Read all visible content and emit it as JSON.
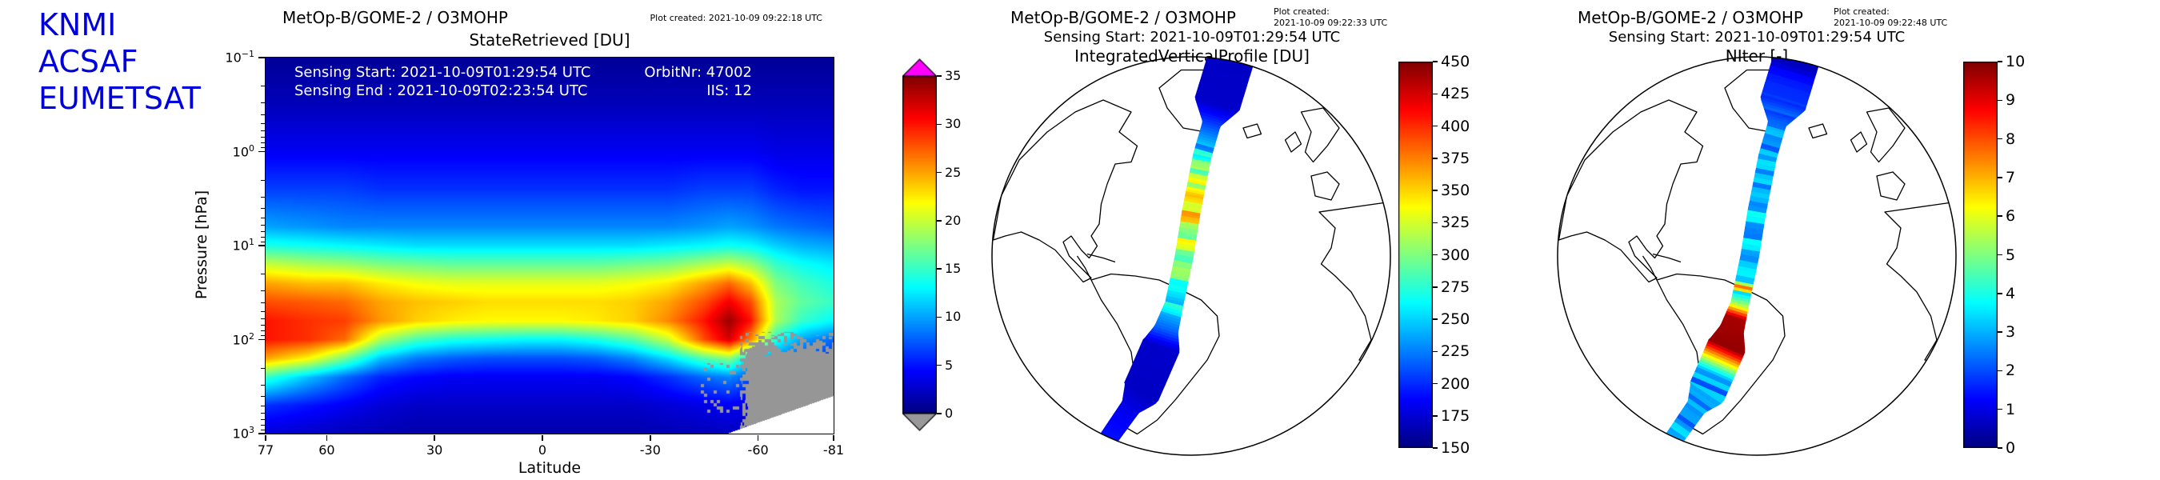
{
  "logo": {
    "lines": [
      "KNMI",
      "ACSAF",
      "EUMETSAT"
    ],
    "color": "#0000dd"
  },
  "heatmap_panel": {
    "title": "MetOp-B/GOME-2 / O3MOHP",
    "plot_created": "Plot created: 2021-10-09 09:22:18 UTC",
    "subtitle": "StateRetrieved [DU]",
    "sensing_start": "Sensing Start: 2021-10-09T01:29:54 UTC",
    "sensing_end": "Sensing End : 2021-10-09T02:23:54 UTC",
    "orbit": "OrbitNr: 47002",
    "iis": "IIS: 12",
    "xlabel": "Latitude",
    "ylabel": "Pressure [hPa]"
  },
  "map1_panel": {
    "title": "MetOp-B/GOME-2 / O3MOHP",
    "plot_created_l1": "Plot created:",
    "plot_created_l2": "2021-10-09 09:22:33 UTC",
    "sensing": "Sensing Start: 2021-10-09T01:29:54 UTC",
    "subtitle": "IntegratedVerticalProfile [DU]"
  },
  "map2_panel": {
    "title": "MetOp-B/GOME-2 / O3MOHP",
    "plot_created_l1": "Plot created:",
    "plot_created_l2": "2021-10-09 09:22:48 UTC",
    "sensing": "Sensing Start: 2021-10-09T01:29:54 UTC",
    "subtitle": "NIter [-]"
  },
  "chart_data": [
    {
      "type": "heatmap",
      "title": "StateRetrieved [DU]",
      "xlabel": "Latitude",
      "ylabel": "Pressure [hPa]",
      "cmap": "jet",
      "x_ticks": [
        77,
        60,
        30,
        0,
        -30,
        -60,
        -81
      ],
      "lats_range": [
        77,
        -81
      ],
      "y_ticks_hPa": [
        0.1,
        1,
        10,
        100,
        1000
      ],
      "y_tick_exponents": [
        -1,
        0,
        1,
        2,
        3
      ],
      "colorbar": {
        "vmin": 0,
        "vmax": 35,
        "ticks": [
          0,
          5,
          10,
          15,
          20,
          25,
          30,
          35
        ],
        "over_color": "#ff00ff",
        "under_color": "#999999"
      },
      "lats": [
        77,
        65,
        55,
        45,
        35,
        25,
        15,
        5,
        -5,
        -15,
        -25,
        -35,
        -45,
        -52,
        -58,
        -65,
        -72,
        -81
      ],
      "log10_pressure": [
        -1,
        -0.5,
        0,
        0.4,
        0.8,
        1.0,
        1.2,
        1.4,
        1.6,
        1.8,
        2.0,
        2.2,
        2.4,
        2.7,
        3.0
      ],
      "values": [
        [
          0.8,
          0.8,
          0.8,
          0.8,
          0.8,
          0.8,
          0.8,
          0.8,
          0.8,
          0.8,
          0.8,
          0.8,
          0.8,
          0.8,
          0.8,
          0.8,
          0.8,
          0.8
        ],
        [
          2,
          2,
          2,
          2,
          2,
          2,
          2,
          2,
          2,
          2,
          2,
          2,
          2,
          2,
          2,
          2,
          2,
          2
        ],
        [
          4,
          4,
          4,
          4,
          4,
          4,
          4,
          4,
          4,
          4,
          4,
          4,
          4,
          4,
          4,
          3.5,
          3.5,
          3.5
        ],
        [
          6.5,
          6.5,
          6.5,
          6,
          6,
          6,
          6,
          6,
          6,
          6,
          6,
          6,
          6.5,
          6.5,
          6.5,
          5.5,
          5,
          5
        ],
        [
          10,
          9.5,
          9,
          9,
          9,
          9,
          9,
          9,
          9,
          9,
          9,
          9,
          9.5,
          10,
          9.5,
          8.5,
          8,
          7.5
        ],
        [
          14,
          13.5,
          13,
          12.5,
          12,
          12,
          12,
          12,
          12,
          12,
          12,
          12.5,
          13,
          13.5,
          13,
          11.5,
          10.5,
          10
        ],
        [
          20,
          19,
          18.5,
          17.5,
          17,
          16.5,
          16.5,
          16.5,
          16.5,
          16.5,
          17,
          17.5,
          19,
          20,
          18.5,
          15,
          13.5,
          12.5
        ],
        [
          25,
          24,
          24,
          22.5,
          21.5,
          21,
          21,
          21,
          21,
          21,
          21.5,
          22.5,
          25,
          27,
          24,
          17.5,
          15.5,
          14
        ],
        [
          28,
          27.5,
          27,
          25,
          24,
          23.5,
          23,
          23,
          23,
          23,
          23.5,
          25,
          28,
          31,
          28,
          19,
          16.5,
          15
        ],
        [
          30,
          29,
          28.5,
          25.5,
          23.5,
          22.5,
          22,
          22,
          22,
          22.5,
          23.5,
          26,
          30,
          34,
          30,
          19,
          15,
          13
        ],
        [
          30,
          29,
          27,
          19,
          15.5,
          14,
          13.5,
          13,
          13,
          14,
          16,
          20,
          28,
          32,
          26,
          14,
          10,
          8
        ],
        [
          25,
          22,
          17,
          11,
          8.5,
          7.5,
          7,
          7,
          7,
          7.5,
          9,
          12,
          16,
          18,
          12,
          9,
          7,
          6
        ],
        [
          15,
          11,
          8,
          5.5,
          4.5,
          4,
          4,
          4,
          4,
          4,
          4.5,
          6,
          8,
          9,
          7,
          5,
          4,
          4
        ],
        [
          6,
          5,
          4,
          3,
          2.5,
          2.5,
          2.5,
          2.5,
          2.5,
          2.5,
          2.5,
          3,
          3.5,
          4,
          3.5,
          3,
          2.5,
          2.5
        ],
        [
          3,
          2.5,
          2,
          1.8,
          1.5,
          1.5,
          1.5,
          1.5,
          1.5,
          1.5,
          1.5,
          1.8,
          2,
          2.2,
          2,
          2,
          1.8,
          1.8
        ]
      ],
      "surface_white": {
        "lat_start": -50,
        "lat_end": -81,
        "logp_start": 3.02,
        "logp_end": 2.6
      },
      "surface_gray": {
        "lat_max": -55,
        "logp_min": 1.92,
        "edge_band": 0.3,
        "speckle_lat_min": -44,
        "speckle_logp_min": 2.25,
        "speckle_logp_max": 2.78,
        "speckle_density": 0.15
      }
    },
    {
      "type": "map-swath",
      "projection": "orthographic",
      "title": "IntegratedVerticalProfile [DU]",
      "cmap": "jet",
      "colorbar": {
        "vmin": 150,
        "vmax": 450,
        "ticks": [
          150,
          175,
          200,
          225,
          250,
          275,
          300,
          325,
          350,
          375,
          400,
          425,
          450
        ]
      },
      "track_center": [
        [
          0,
          0.2,
          -0.99
        ],
        [
          0.12,
          0.13,
          -0.76
        ],
        [
          0.25,
          0.055,
          -0.5
        ],
        [
          0.4,
          0.0,
          -0.22
        ],
        [
          0.5,
          -0.035,
          0.0
        ],
        [
          0.6,
          -0.085,
          0.24
        ],
        [
          0.7,
          -0.15,
          0.45
        ],
        [
          0.82,
          -0.25,
          0.68
        ],
        [
          1,
          -0.44,
          0.95
        ]
      ],
      "track_halfwidth": [
        [
          0,
          0.115
        ],
        [
          0.12,
          0.115
        ],
        [
          0.17,
          0.045
        ],
        [
          0.6,
          0.045
        ],
        [
          0.66,
          0.06
        ],
        [
          0.7,
          0.095
        ],
        [
          0.82,
          0.095
        ],
        [
          0.87,
          0.05
        ],
        [
          1,
          0.045
        ]
      ],
      "track_values": [
        [
          0,
          170
        ],
        [
          0.12,
          172
        ],
        [
          0.18,
          215
        ],
        [
          0.24,
          260
        ],
        [
          0.3,
          315
        ],
        [
          0.36,
          355
        ],
        [
          0.42,
          335
        ],
        [
          0.48,
          305
        ],
        [
          0.54,
          285
        ],
        [
          0.6,
          255
        ],
        [
          0.66,
          215
        ],
        [
          0.7,
          172
        ],
        [
          0.82,
          170
        ],
        [
          0.9,
          185
        ],
        [
          1,
          195
        ]
      ],
      "speckle": [
        {
          "t0": 0.22,
          "t1": 0.62,
          "amp": 28,
          "chunk": 2
        }
      ]
    },
    {
      "type": "map-swath",
      "projection": "orthographic",
      "title": "NIter [-]",
      "cmap": "jet",
      "colorbar": {
        "vmin": 0,
        "vmax": 10,
        "ticks": [
          0,
          1,
          2,
          3,
          4,
          5,
          6,
          7,
          8,
          9,
          10
        ]
      },
      "track_center": [
        [
          0,
          0.2,
          -0.99
        ],
        [
          0.12,
          0.13,
          -0.76
        ],
        [
          0.25,
          0.055,
          -0.5
        ],
        [
          0.4,
          0.0,
          -0.22
        ],
        [
          0.5,
          -0.035,
          0.0
        ],
        [
          0.6,
          -0.085,
          0.24
        ],
        [
          0.7,
          -0.15,
          0.45
        ],
        [
          0.82,
          -0.25,
          0.68
        ],
        [
          1,
          -0.44,
          0.95
        ]
      ],
      "track_halfwidth": [
        [
          0,
          0.115
        ],
        [
          0.12,
          0.115
        ],
        [
          0.17,
          0.045
        ],
        [
          0.6,
          0.045
        ],
        [
          0.66,
          0.06
        ],
        [
          0.7,
          0.095
        ],
        [
          0.82,
          0.095
        ],
        [
          0.87,
          0.05
        ],
        [
          1,
          0.045
        ]
      ],
      "track_values": [
        [
          0,
          0.6
        ],
        [
          0.1,
          0.8
        ],
        [
          0.16,
          2.2
        ],
        [
          0.25,
          3.0
        ],
        [
          0.4,
          3.2
        ],
        [
          0.5,
          3.0
        ],
        [
          0.55,
          3.2
        ],
        [
          0.565,
          8.5
        ],
        [
          0.575,
          3.4
        ],
        [
          0.6,
          5.5
        ],
        [
          0.63,
          9.6
        ],
        [
          0.7,
          9.8
        ],
        [
          0.73,
          7
        ],
        [
          0.77,
          3
        ],
        [
          0.85,
          2.5
        ],
        [
          1,
          3
        ]
      ],
      "speckle": [
        {
          "t0": 0.02,
          "t1": 0.14,
          "amp": 0.9,
          "chunk": 3
        },
        {
          "t0": 0.18,
          "t1": 0.54,
          "amp": 0.7,
          "chunk": 2
        },
        {
          "t0": 0.76,
          "t1": 0.95,
          "amp": 0.8,
          "chunk": 2
        }
      ]
    }
  ]
}
